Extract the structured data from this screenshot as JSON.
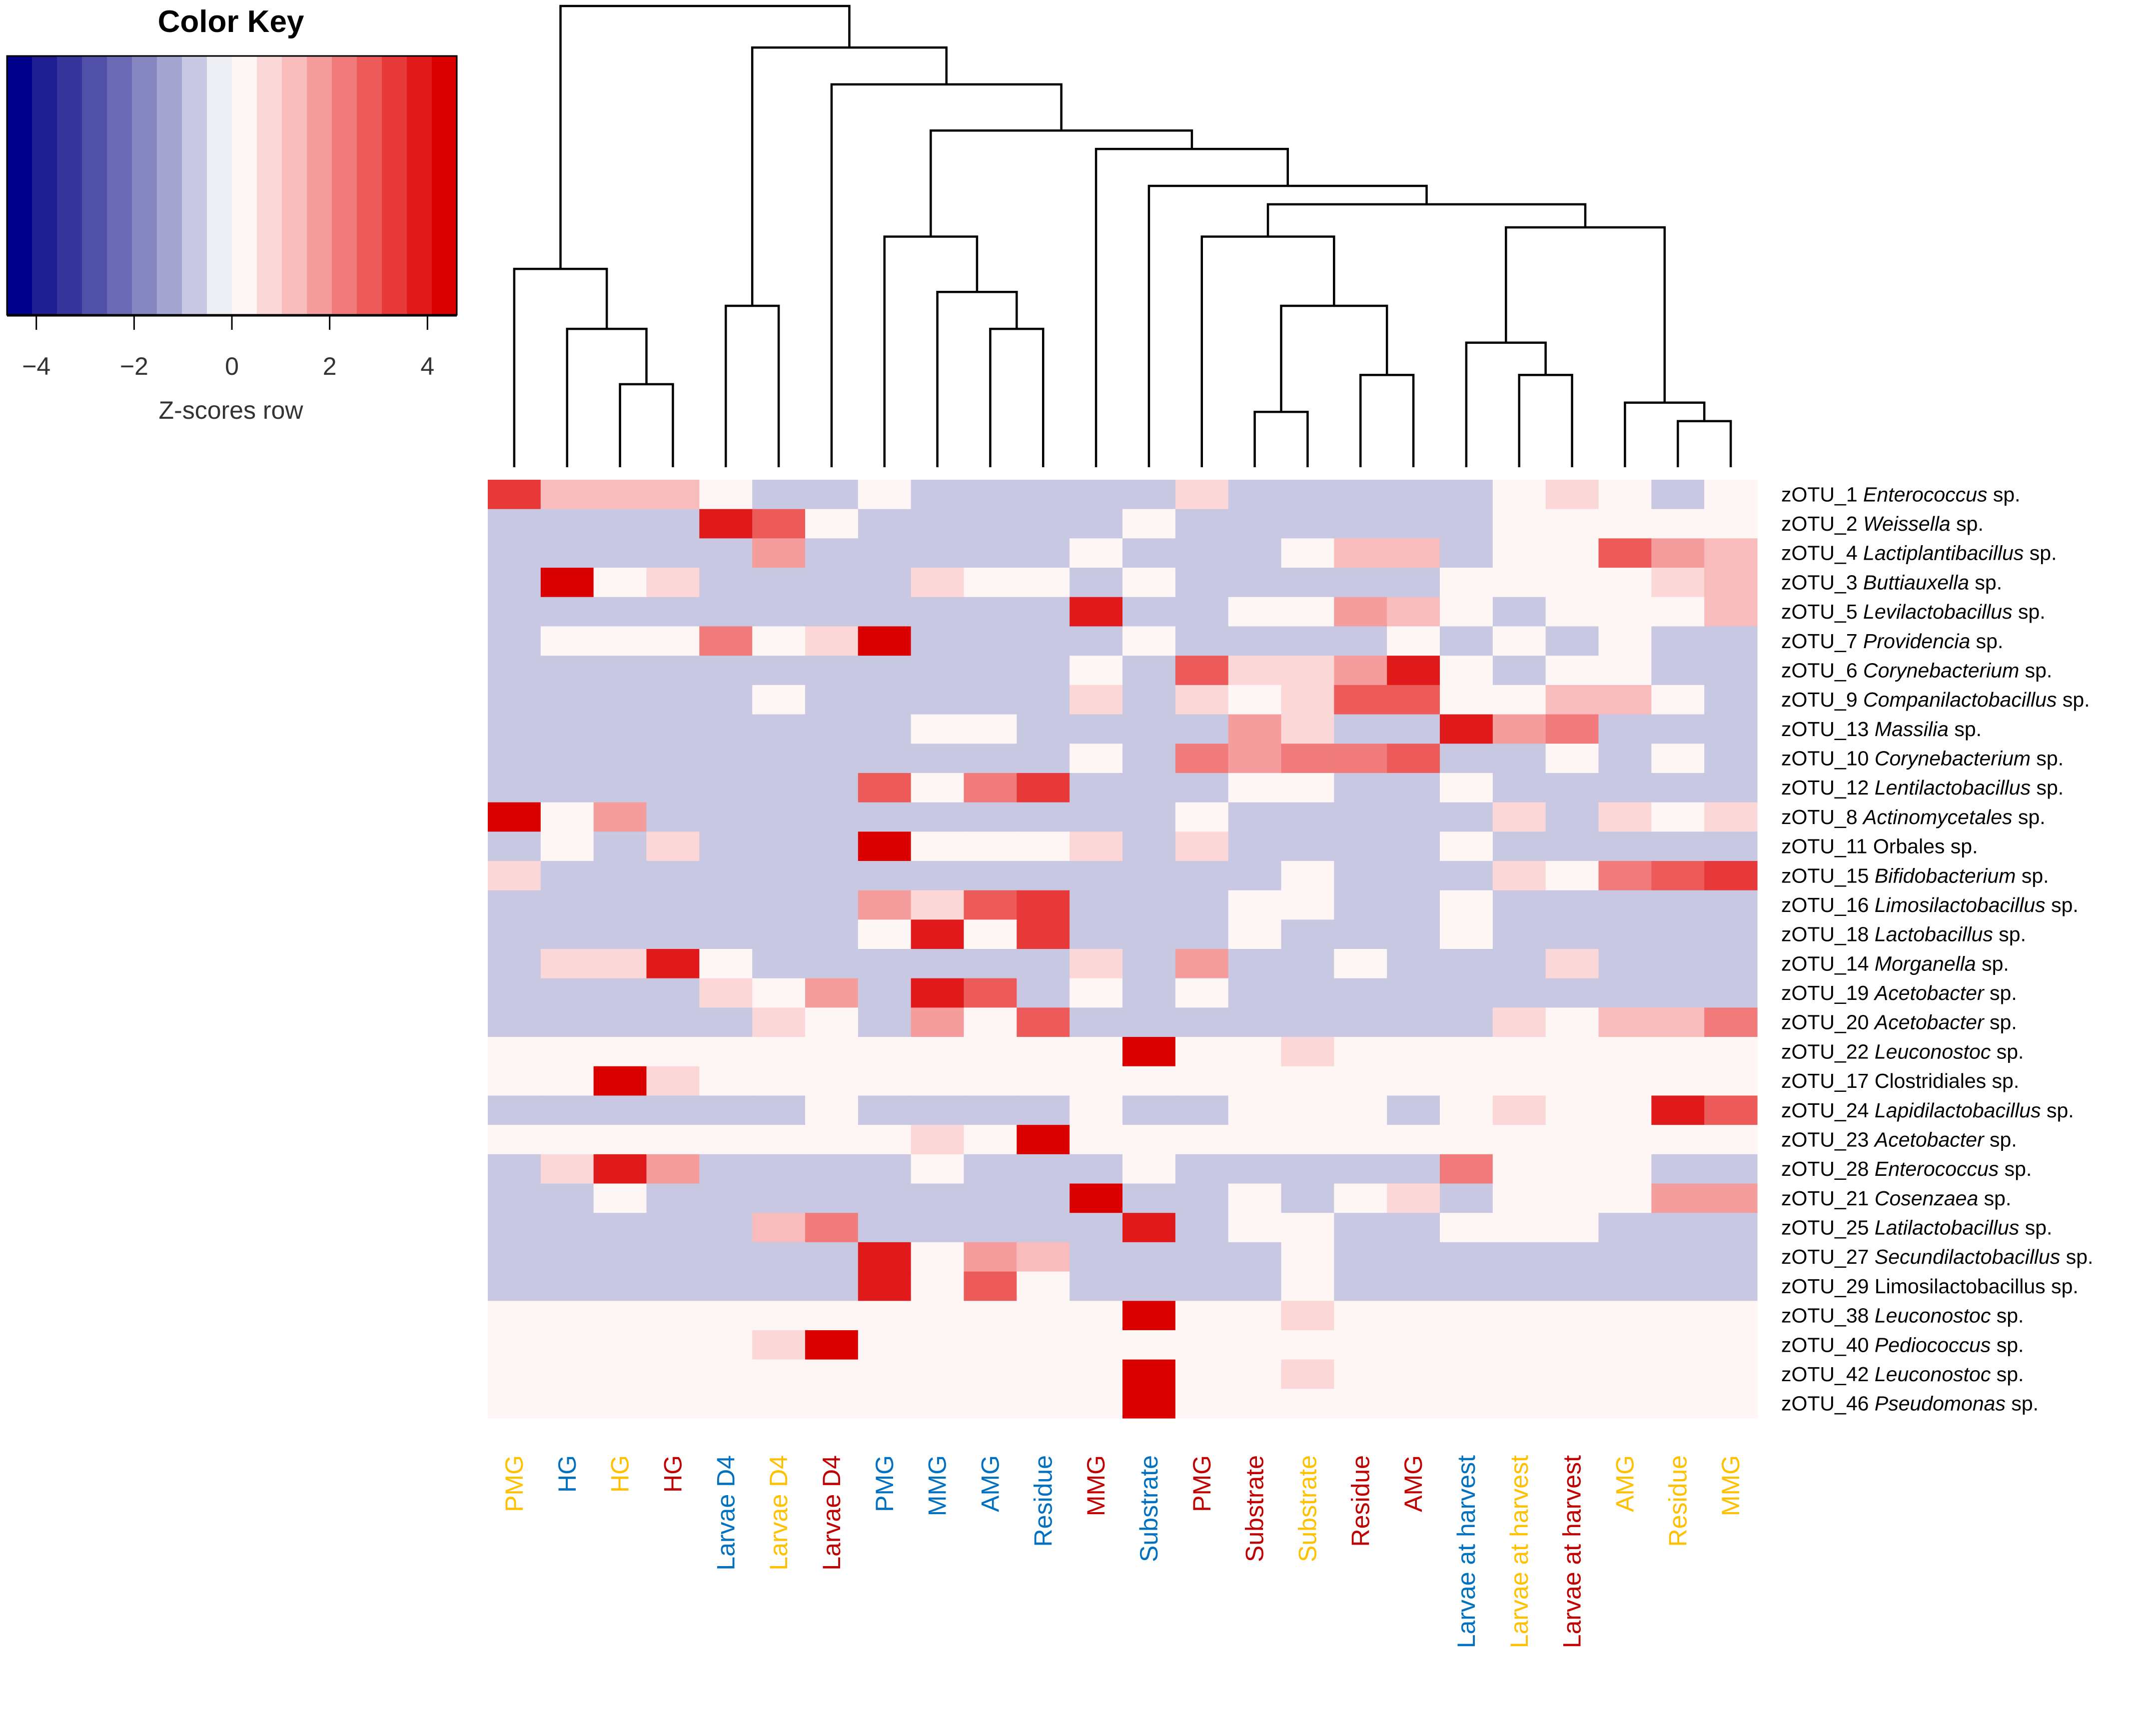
{
  "chart_data": {
    "type": "heatmap",
    "title": "",
    "color_key": {
      "title": "Color Key",
      "label": "Z-scores row",
      "ticks": [
        "−4",
        "−2",
        "0",
        "2",
        "4"
      ],
      "tick_values": [
        -4,
        -2,
        0,
        2,
        4
      ],
      "range": [
        -4.6,
        4.6
      ],
      "colors": [
        "#00008b",
        "#1e1e92",
        "#35359c",
        "#5050a8",
        "#6a6ab4",
        "#8787c2",
        "#a5a5d1",
        "#c8c8e2",
        "#eeeef5",
        "#fef5f5",
        "#fcd7d7",
        "#f9bcbc",
        "#f59c9c",
        "#f17b7b",
        "#ec5a5a",
        "#e73939",
        "#e01a1a",
        "#db0000"
      ]
    },
    "columns": [
      {
        "label": "PMG",
        "color": "#ffc000"
      },
      {
        "label": "HG",
        "color": "#0070c0"
      },
      {
        "label": "HG",
        "color": "#ffc000"
      },
      {
        "label": "HG",
        "color": "#c00000"
      },
      {
        "label": "Larvae D4",
        "color": "#0070c0"
      },
      {
        "label": "Larvae D4",
        "color": "#ffc000"
      },
      {
        "label": "Larvae D4",
        "color": "#c00000"
      },
      {
        "label": "PMG",
        "color": "#0070c0"
      },
      {
        "label": "MMG",
        "color": "#0070c0"
      },
      {
        "label": "AMG",
        "color": "#0070c0"
      },
      {
        "label": "Residue",
        "color": "#0070c0"
      },
      {
        "label": "MMG",
        "color": "#c00000"
      },
      {
        "label": "Substrate",
        "color": "#0070c0"
      },
      {
        "label": "PMG",
        "color": "#c00000"
      },
      {
        "label": "Substrate",
        "color": "#c00000"
      },
      {
        "label": "Substrate",
        "color": "#ffc000"
      },
      {
        "label": "Residue",
        "color": "#c00000"
      },
      {
        "label": "AMG",
        "color": "#c00000"
      },
      {
        "label": "Larvae at harvest",
        "color": "#0070c0"
      },
      {
        "label": "Larvae at harvest",
        "color": "#ffc000"
      },
      {
        "label": "Larvae at harvest",
        "color": "#c00000"
      },
      {
        "label": "AMG",
        "color": "#ffc000"
      },
      {
        "label": "Residue",
        "color": "#ffc000"
      },
      {
        "label": "MMG",
        "color": "#ffc000"
      }
    ],
    "rows": [
      {
        "id": "zOTU_1",
        "taxon": "Enterococcus",
        "italic": true,
        "suffix": " sp."
      },
      {
        "id": "zOTU_2",
        "taxon": "Weissella",
        "italic": true,
        "suffix": " sp."
      },
      {
        "id": "zOTU_4",
        "taxon": "Lactiplantibacillus",
        "italic": true,
        "suffix": " sp."
      },
      {
        "id": "zOTU_3",
        "taxon": "Buttiauxella",
        "italic": true,
        "suffix": " sp."
      },
      {
        "id": "zOTU_5",
        "taxon": "Levilactobacillus",
        "italic": true,
        "suffix": " sp."
      },
      {
        "id": "zOTU_7",
        "taxon": "Providencia",
        "italic": true,
        "suffix": " sp."
      },
      {
        "id": "zOTU_6",
        "taxon": "Corynebacterium",
        "italic": true,
        "suffix": " sp."
      },
      {
        "id": "zOTU_9",
        "taxon": "Companilactobacillus",
        "italic": true,
        "suffix": " sp."
      },
      {
        "id": "zOTU_13",
        "taxon": "Massilia",
        "italic": true,
        "suffix": " sp."
      },
      {
        "id": "zOTU_10",
        "taxon": "Corynebacterium",
        "italic": true,
        "suffix": " sp."
      },
      {
        "id": "zOTU_12",
        "taxon": "Lentilactobacillus",
        "italic": true,
        "suffix": " sp."
      },
      {
        "id": "zOTU_8",
        "taxon": "Actinomycetales",
        "italic": true,
        "suffix": " sp."
      },
      {
        "id": "zOTU_11",
        "taxon": "Orbales",
        "italic": false,
        "suffix": " sp."
      },
      {
        "id": "zOTU_15",
        "taxon": "Bifidobacterium",
        "italic": true,
        "suffix": " sp."
      },
      {
        "id": "zOTU_16",
        "taxon": "Limosilactobacillus",
        "italic": true,
        "suffix": " sp."
      },
      {
        "id": "zOTU_18",
        "taxon": "Lactobacillus",
        "italic": true,
        "suffix": " sp."
      },
      {
        "id": "zOTU_14",
        "taxon": "Morganella",
        "italic": true,
        "suffix": " sp."
      },
      {
        "id": "zOTU_19",
        "taxon": "Acetobacter",
        "italic": true,
        "suffix": " sp."
      },
      {
        "id": "zOTU_20",
        "taxon": "Acetobacter",
        "italic": true,
        "suffix": " sp."
      },
      {
        "id": "zOTU_22",
        "taxon": "Leuconostoc",
        "italic": true,
        "suffix": " sp."
      },
      {
        "id": "zOTU_17",
        "taxon": "Clostridiales",
        "italic": false,
        "suffix": " sp."
      },
      {
        "id": "zOTU_24",
        "taxon": "Lapidilactobacillus",
        "italic": true,
        "suffix": " sp."
      },
      {
        "id": "zOTU_23",
        "taxon": "Acetobacter",
        "italic": true,
        "suffix": " sp."
      },
      {
        "id": "zOTU_28",
        "taxon": "Enterococcus",
        "italic": true,
        "suffix": " sp."
      },
      {
        "id": "zOTU_21",
        "taxon": "Cosenzaea",
        "italic": true,
        "suffix": " sp."
      },
      {
        "id": "zOTU_25",
        "taxon": "Latilactobacillus",
        "italic": true,
        "suffix": " sp."
      },
      {
        "id": "zOTU_27",
        "taxon": "Secundilactobacillus",
        "italic": true,
        "suffix": " sp."
      },
      {
        "id": "zOTU_29",
        "taxon": "Limosilactobacillus",
        "italic": false,
        "suffix": " sp."
      },
      {
        "id": "zOTU_38",
        "taxon": "Leuconostoc",
        "italic": true,
        "suffix": " sp."
      },
      {
        "id": "zOTU_40",
        "taxon": "Pediococcus",
        "italic": true,
        "suffix": " sp."
      },
      {
        "id": "zOTU_42",
        "taxon": "Leuconostoc",
        "italic": true,
        "suffix": " sp."
      },
      {
        "id": "zOTU_46",
        "taxon": "Pseudomonas",
        "italic": true,
        "suffix": " sp."
      }
    ],
    "values": [
      [
        3.2,
        1.3,
        1.3,
        1.3,
        0.2,
        -0.6,
        -0.6,
        0.2,
        -0.6,
        -0.6,
        -0.6,
        -0.6,
        -0.6,
        1,
        -0.6,
        -0.6,
        -0.6,
        -0.6,
        -0.6,
        0.2,
        1,
        0.2,
        -0.6,
        0.2
      ],
      [
        -0.6,
        -0.6,
        -0.6,
        -0.6,
        4,
        2.8,
        0.2,
        -0.6,
        -0.6,
        -0.6,
        -0.6,
        -0.6,
        0.2,
        -0.6,
        -0.6,
        -0.6,
        -0.6,
        -0.6,
        -0.6,
        0.2,
        0.2,
        0.2,
        0.2,
        0.2
      ],
      [
        -0.6,
        -0.6,
        -0.6,
        -0.6,
        -0.6,
        1.8,
        -0.6,
        -0.6,
        -0.6,
        -0.6,
        -0.6,
        0.2,
        -0.6,
        -0.6,
        -0.6,
        0.2,
        1.5,
        1.5,
        -0.6,
        0.2,
        0.2,
        2.8,
        1.8,
        1.3
      ],
      [
        -0.6,
        4.4,
        0.2,
        1,
        -0.6,
        -0.6,
        -0.6,
        -0.6,
        1,
        0.2,
        0.2,
        -0.6,
        0.2,
        -0.6,
        -0.6,
        -0.6,
        -0.6,
        -0.6,
        0.2,
        0.2,
        0.2,
        0.2,
        1,
        1.3
      ],
      [
        -0.6,
        -0.6,
        -0.6,
        -0.6,
        -0.6,
        -0.6,
        -0.6,
        -0.6,
        -0.6,
        -0.6,
        -0.6,
        4,
        -0.6,
        -0.6,
        0.2,
        0.2,
        1.6,
        1.1,
        0.2,
        -0.6,
        0.2,
        0.2,
        0.2,
        1.3
      ],
      [
        -0.6,
        0.2,
        0.2,
        0.2,
        2.1,
        0.2,
        1,
        4.4,
        -0.6,
        -0.6,
        -0.6,
        -0.6,
        0.2,
        -0.6,
        -0.6,
        -0.6,
        -0.6,
        0.2,
        -0.6,
        0.2,
        -0.6,
        0.2,
        -0.6,
        -0.6
      ],
      [
        -0.6,
        -0.6,
        -0.6,
        -0.6,
        -0.6,
        -0.6,
        -0.6,
        -0.6,
        -0.6,
        -0.6,
        -0.6,
        0.2,
        -0.6,
        2.6,
        1,
        1,
        1.8,
        3.6,
        0.2,
        -0.6,
        0.2,
        0.2,
        -0.6,
        -0.6
      ],
      [
        -0.6,
        -0.6,
        -0.6,
        -0.6,
        -0.6,
        0.2,
        -0.6,
        -0.6,
        -0.6,
        -0.6,
        -0.6,
        1,
        -0.6,
        1,
        0.2,
        1,
        2.8,
        2.8,
        0.2,
        0.2,
        1.1,
        1.1,
        0.2,
        -0.6
      ],
      [
        -0.6,
        -0.6,
        -0.6,
        -0.6,
        -0.6,
        -0.6,
        -0.6,
        -0.6,
        0.2,
        0.2,
        -0.6,
        -0.6,
        -0.6,
        -0.6,
        1.6,
        1,
        -0.6,
        -0.6,
        4,
        1.6,
        2.2,
        -0.6,
        -0.6,
        -0.6
      ],
      [
        -0.6,
        -0.6,
        -0.6,
        -0.6,
        -0.6,
        -0.6,
        -0.6,
        -0.6,
        -0.6,
        -0.6,
        -0.6,
        0.2,
        -0.6,
        2.2,
        1.6,
        2.2,
        2.2,
        2.8,
        -0.6,
        -0.6,
        0.2,
        -0.6,
        0.2,
        -0.6
      ],
      [
        -0.6,
        -0.6,
        -0.6,
        -0.6,
        -0.6,
        -0.6,
        -0.6,
        2.8,
        0.2,
        2.4,
        3.4,
        -0.6,
        -0.6,
        -0.6,
        0.2,
        0.2,
        -0.6,
        -0.6,
        0.2,
        -0.6,
        -0.6,
        -0.6,
        -0.6,
        -0.6
      ],
      [
        4.6,
        0.2,
        1.8,
        -0.6,
        -0.6,
        -0.6,
        -0.6,
        -0.6,
        -0.6,
        -0.6,
        -0.6,
        -0.6,
        -0.6,
        0.2,
        -0.6,
        -0.6,
        -0.6,
        -0.6,
        -0.6,
        1,
        -0.6,
        1,
        0.2,
        1
      ],
      [
        -0.6,
        0.2,
        -0.6,
        1,
        -0.6,
        -0.6,
        -0.6,
        4.6,
        0.2,
        0.2,
        0.2,
        1,
        -0.6,
        1,
        -0.6,
        -0.6,
        -0.6,
        -0.6,
        0.2,
        -0.6,
        -0.6,
        -0.6,
        -0.6,
        -0.6
      ],
      [
        1,
        -0.6,
        -0.6,
        -0.6,
        -0.6,
        -0.6,
        -0.6,
        -0.6,
        -0.6,
        -0.6,
        -0.6,
        -0.6,
        -0.6,
        -0.6,
        -0.6,
        0.2,
        -0.6,
        -0.6,
        -0.6,
        1,
        0.2,
        2.4,
        2.8,
        3.4
      ],
      [
        -0.6,
        -0.6,
        -0.6,
        -0.6,
        -0.6,
        -0.6,
        -0.6,
        1.8,
        1,
        2.6,
        3.4,
        -0.6,
        -0.6,
        -0.6,
        0.2,
        0.2,
        -0.6,
        -0.6,
        0.2,
        -0.6,
        -0.6,
        -0.6,
        -0.6,
        -0.6
      ],
      [
        -0.6,
        -0.6,
        -0.6,
        -0.6,
        -0.6,
        -0.6,
        -0.6,
        0.2,
        4,
        0.2,
        3.4,
        -0.6,
        -0.6,
        -0.6,
        0.2,
        -0.6,
        -0.6,
        -0.6,
        0.2,
        -0.6,
        -0.6,
        -0.6,
        -0.6,
        -0.6
      ],
      [
        -0.6,
        1,
        1,
        4,
        0.2,
        -0.6,
        -0.6,
        -0.6,
        -0.6,
        -0.6,
        -0.6,
        1,
        -0.6,
        1.8,
        -0.6,
        -0.6,
        0.2,
        -0.6,
        -0.6,
        -0.6,
        1,
        -0.6,
        -0.6,
        -0.6
      ],
      [
        -0.6,
        -0.6,
        -0.6,
        -0.6,
        1,
        0.2,
        1.6,
        -0.6,
        4,
        2.8,
        -0.6,
        0.2,
        -0.6,
        0.2,
        -0.6,
        -0.6,
        -0.6,
        -0.6,
        -0.6,
        -0.6,
        -0.6,
        -0.6,
        -0.6,
        -0.6
      ],
      [
        -0.6,
        -0.6,
        -0.6,
        -0.6,
        -0.6,
        1,
        0.2,
        -0.6,
        1.6,
        0.2,
        2.6,
        -0.6,
        -0.6,
        -0.6,
        -0.6,
        -0.6,
        -0.6,
        -0.6,
        -0.6,
        1,
        0.2,
        1.3,
        1.3,
        2.2
      ],
      [
        0.2,
        0.2,
        0.2,
        0.2,
        0.2,
        0.2,
        0.2,
        0.2,
        0.2,
        0.2,
        0.2,
        0.2,
        4.6,
        0.2,
        0.2,
        1,
        0.2,
        0.2,
        0.2,
        0.2,
        0.2,
        0.2,
        0.2,
        0.2
      ],
      [
        0.2,
        0.2,
        4.6,
        1,
        0.2,
        0.2,
        0.2,
        0.2,
        0.2,
        0.2,
        0.2,
        0.2,
        0.2,
        0.2,
        0.2,
        0.2,
        0.2,
        0.2,
        0.2,
        0.2,
        0.2,
        0.2,
        0.2,
        0.2
      ],
      [
        -0.6,
        -0.6,
        -0.6,
        -0.6,
        -0.6,
        -0.6,
        0.2,
        -0.6,
        -0.6,
        -0.6,
        -0.6,
        0.2,
        -0.6,
        -0.6,
        0.2,
        0.2,
        0.2,
        -0.6,
        0.2,
        1,
        0.2,
        0.2,
        4,
        2.8
      ],
      [
        0.2,
        0.2,
        0.2,
        0.2,
        0.2,
        0.2,
        0.2,
        0.2,
        1,
        0.2,
        4.6,
        0.2,
        0.2,
        0.2,
        0.2,
        0.2,
        0.2,
        0.2,
        0.2,
        0.2,
        0.2,
        0.2,
        0.2,
        0.2
      ],
      [
        -0.6,
        1,
        3.6,
        1.6,
        -0.6,
        -0.6,
        -0.6,
        -0.6,
        0.2,
        -0.6,
        -0.6,
        -0.6,
        0.2,
        -0.6,
        -0.6,
        -0.6,
        -0.6,
        -0.6,
        2.2,
        0.2,
        0.2,
        0.2,
        -0.6,
        -0.6
      ],
      [
        -0.6,
        -0.6,
        0.2,
        -0.6,
        -0.6,
        -0.6,
        -0.6,
        -0.6,
        -0.6,
        -0.6,
        -0.6,
        4.4,
        -0.6,
        -0.6,
        0.2,
        -0.6,
        0.2,
        1,
        -0.6,
        0.2,
        0.2,
        0.2,
        1.6,
        1.6
      ],
      [
        -0.6,
        -0.6,
        -0.6,
        -0.6,
        -0.6,
        1.3,
        2.2,
        -0.6,
        -0.6,
        -0.6,
        -0.6,
        -0.6,
        3.8,
        -0.6,
        0.2,
        0.2,
        -0.6,
        -0.6,
        0.2,
        0.2,
        0.2,
        -0.6,
        -0.6,
        -0.6
      ],
      [
        -0.6,
        -0.6,
        -0.6,
        -0.6,
        -0.6,
        -0.6,
        -0.6,
        4,
        0.2,
        2,
        1.4,
        -0.6,
        -0.6,
        -0.6,
        -0.6,
        0.2,
        -0.6,
        -0.6,
        -0.6,
        -0.6,
        -0.6,
        -0.6,
        -0.6,
        -0.6
      ],
      [
        -0.6,
        -0.6,
        -0.6,
        -0.6,
        -0.6,
        -0.6,
        -0.6,
        4,
        0.2,
        2.6,
        0.2,
        -0.6,
        -0.6,
        -0.6,
        -0.6,
        0.2,
        -0.6,
        -0.6,
        -0.6,
        -0.6,
        -0.6,
        -0.6,
        -0.6,
        -0.6
      ],
      [
        0.2,
        0.2,
        0.2,
        0.2,
        0.2,
        0.2,
        0.2,
        0.2,
        0.2,
        0.2,
        0.2,
        0.2,
        4.6,
        0.2,
        0.2,
        1,
        0.2,
        0.2,
        0.2,
        0.2,
        0.2,
        0.2,
        0.2,
        0.2
      ],
      [
        0.2,
        0.2,
        0.2,
        0.2,
        0.2,
        1,
        4.6,
        0.2,
        0.2,
        0.2,
        0.2,
        0.2,
        0.2,
        0.2,
        0.2,
        0.2,
        0.2,
        0.2,
        0.2,
        0.2,
        0.2,
        0.2,
        0.2,
        0.2
      ],
      [
        0.2,
        0.2,
        0.2,
        0.2,
        0.2,
        0.2,
        0.2,
        0.2,
        0.2,
        0.2,
        0.2,
        0.2,
        4.6,
        0.2,
        0.2,
        1,
        0.2,
        0.2,
        0.2,
        0.2,
        0.2,
        0.2,
        0.2,
        0.2
      ],
      [
        0.2,
        0.2,
        0.2,
        0.2,
        0.2,
        0.2,
        0.2,
        0.2,
        0.2,
        0.2,
        0.2,
        0.2,
        4.6,
        0.2,
        0.2,
        0.2,
        0.2,
        0.2,
        0.2,
        0.2,
        0.2,
        0.2,
        0.2,
        0.2
      ]
    ],
    "dendrogram": {
      "merges": [
        [
          2,
          3,
          0.18
        ],
        [
          14,
          15,
          0.12
        ],
        [
          16,
          17,
          0.2
        ],
        [
          19,
          20,
          0.2
        ],
        [
          22,
          23,
          0.1
        ],
        [
          9,
          10,
          0.3
        ],
        [
          1,
          2,
          0.3
        ],
        [
          4,
          5,
          0.35
        ],
        [
          8,
          9,
          0.38
        ],
        [
          21,
          22,
          0.14
        ],
        [
          14,
          16,
          0.35
        ],
        [
          18,
          19,
          0.27
        ],
        [
          0,
          1,
          0.43
        ],
        [
          7,
          8,
          0.5
        ],
        [
          13,
          14,
          0.5
        ],
        [
          18,
          21,
          0.52
        ],
        [
          13,
          18,
          0.57
        ],
        [
          12,
          13,
          0.61
        ],
        [
          11,
          12,
          0.69
        ],
        [
          7,
          11,
          0.73
        ],
        [
          6,
          7,
          0.83
        ],
        [
          4,
          6,
          0.91
        ],
        [
          0,
          4,
          1.0
        ]
      ]
    }
  }
}
